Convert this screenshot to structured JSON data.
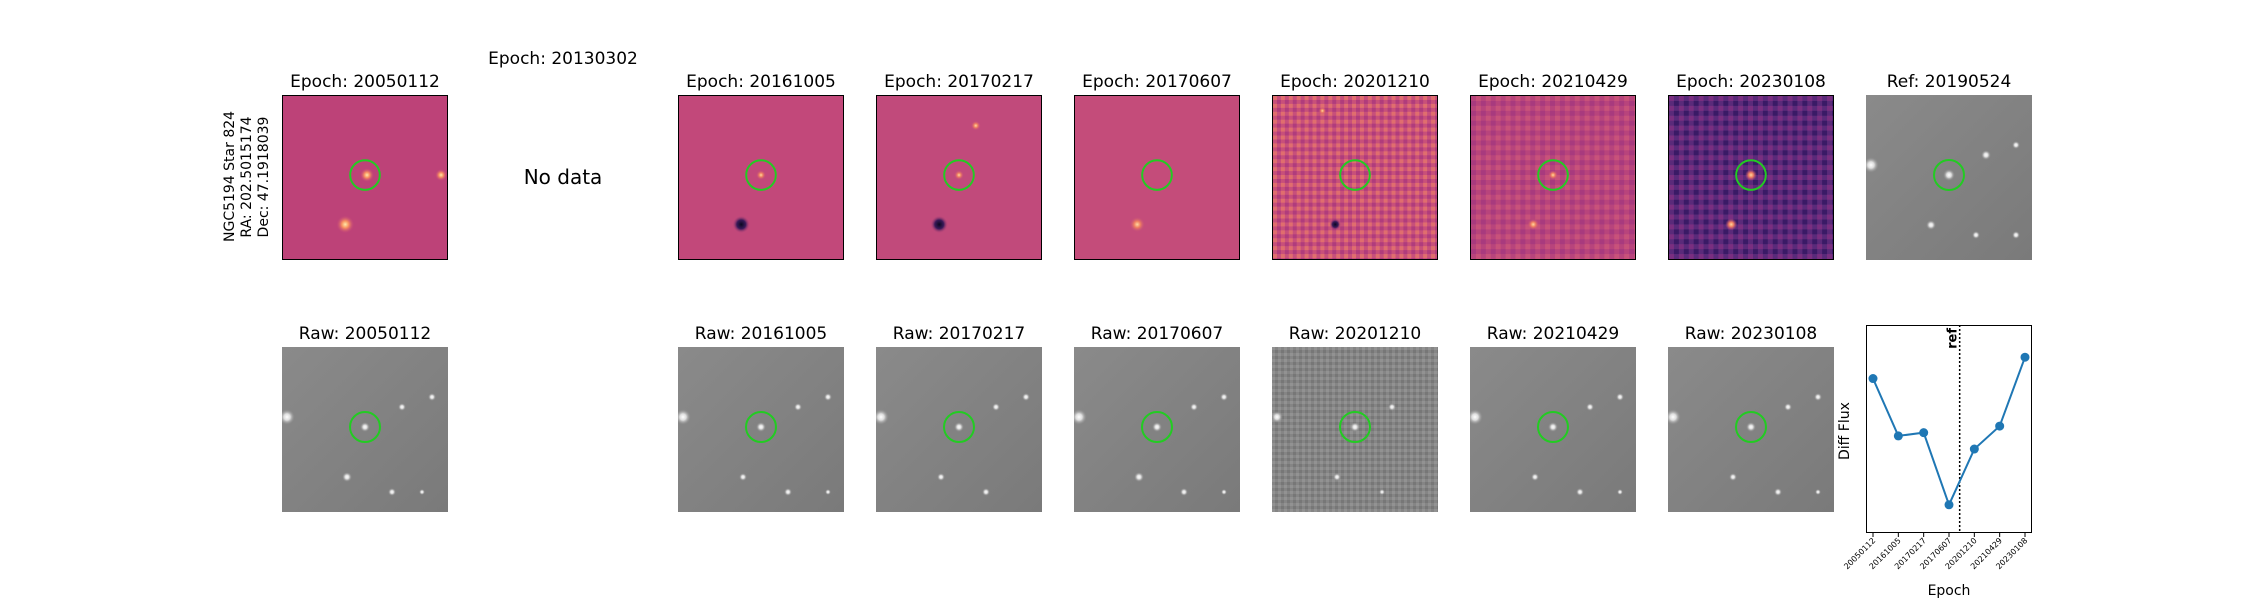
{
  "target": {
    "lines": [
      "NGC5194 Star 824",
      "RA: 202.5015174",
      "Dec: 47.1918039"
    ]
  },
  "diff_titles": [
    "Epoch: 20050112",
    "Epoch: 20130302",
    "Epoch: 20161005",
    "Epoch: 20170217",
    "Epoch: 20170607",
    "Epoch: 20201210",
    "Epoch: 20210429",
    "Epoch: 20230108"
  ],
  "ref_title": "Ref: 20190524",
  "no_data_text": "No data",
  "raw_titles": [
    "Raw: 20050112",
    "Raw: 20161005",
    "Raw: 20170217",
    "Raw: 20170607",
    "Raw: 20201210",
    "Raw: 20210429",
    "Raw: 20230108"
  ],
  "colors": {
    "marker_circle": "#22cc22",
    "line": "#1f77b4",
    "ref_line": "#000000"
  },
  "chart_data": {
    "type": "line",
    "xlabel": "Epoch",
    "ylabel": "Diff Flux",
    "categories": [
      "20050112",
      "20161005",
      "20170217",
      "20170607",
      "20201210",
      "20210429",
      "20230108"
    ],
    "values": [
      0.82,
      0.47,
      0.49,
      0.05,
      0.39,
      0.53,
      0.95
    ],
    "ref_marker": {
      "label": "ref",
      "position_between": [
        3,
        4
      ]
    },
    "yticks": "none",
    "grid": false
  }
}
